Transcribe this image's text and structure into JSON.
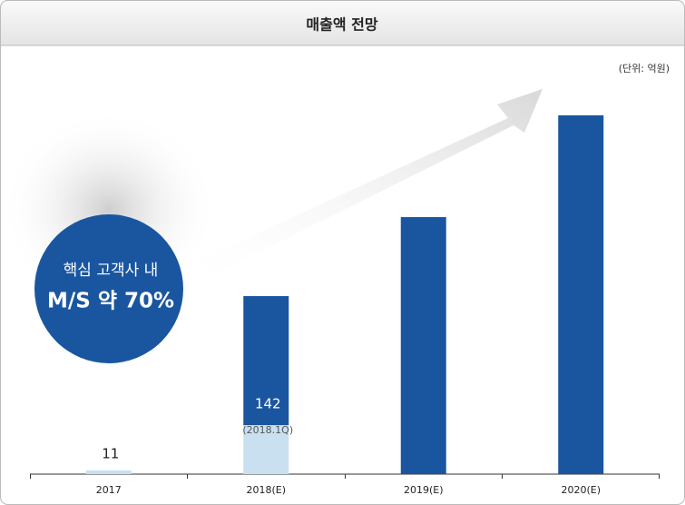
{
  "chart_data": {
    "type": "bar",
    "title": "매출액 전망",
    "unit_note": "(단위: 억원)",
    "badge": [
      "핵심 고객사 내",
      "M/S 약 70%"
    ],
    "annotation": "(2018.1Q)",
    "categories": [
      "2017",
      "2018(E)",
      "2019(E)",
      "2020(E)"
    ],
    "stacked": true,
    "series": [
      {
        "color": "#c9e0f0",
        "values": [
          11,
          142,
          null,
          null
        ]
      },
      {
        "color": "#1a56a0",
        "values": [
          null,
          374,
          745,
          1040
        ]
      }
    ]
  }
}
